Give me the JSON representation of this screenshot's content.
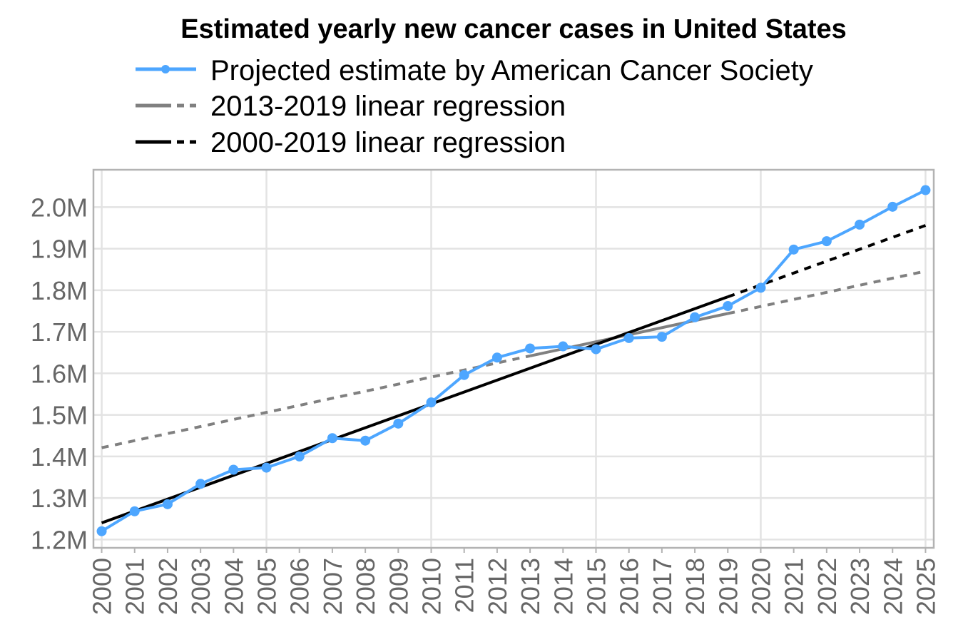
{
  "chart_data": {
    "type": "line",
    "title": "Estimated yearly new cancer cases in United States",
    "xlabel": "",
    "ylabel": "",
    "x": [
      "2000",
      "2001",
      "2002",
      "2003",
      "2004",
      "2005",
      "2006",
      "2007",
      "2008",
      "2009",
      "2010",
      "2011",
      "2012",
      "2013",
      "2014",
      "2015",
      "2016",
      "2017",
      "2018",
      "2019",
      "2020",
      "2021",
      "2022",
      "2023",
      "2024",
      "2025"
    ],
    "xlim": [
      1999.75,
      2025.25
    ],
    "ylim": [
      1.18,
      2.09
    ],
    "y_ticks": [
      {
        "value": 1.2,
        "label": "1.2M"
      },
      {
        "value": 1.3,
        "label": "1.3M"
      },
      {
        "value": 1.4,
        "label": "1.4M"
      },
      {
        "value": 1.5,
        "label": "1.5M"
      },
      {
        "value": 1.6,
        "label": "1.6M"
      },
      {
        "value": 1.7,
        "label": "1.7M"
      },
      {
        "value": 1.8,
        "label": "1.8M"
      },
      {
        "value": 1.9,
        "label": "1.9M"
      },
      {
        "value": 2.0,
        "label": "2.0M"
      }
    ],
    "grid": true,
    "legend_position": "top",
    "series": [
      {
        "name": "Projected estimate by American Cancer Society",
        "color": "#4da6ff",
        "style": "line-markers",
        "x": [
          2000,
          2001,
          2002,
          2003,
          2004,
          2005,
          2006,
          2007,
          2008,
          2009,
          2010,
          2011,
          2012,
          2013,
          2014,
          2015,
          2016,
          2017,
          2018,
          2019,
          2020,
          2021,
          2022,
          2023,
          2024,
          2025
        ],
        "values": [
          1.22,
          1.268,
          1.285,
          1.334,
          1.368,
          1.373,
          1.4,
          1.444,
          1.438,
          1.479,
          1.53,
          1.596,
          1.638,
          1.66,
          1.665,
          1.658,
          1.685,
          1.688,
          1.735,
          1.762,
          1.806,
          1.898,
          1.918,
          1.958,
          2.001,
          2.041
        ]
      },
      {
        "name": "2013-2019 linear regression",
        "color": "#808080",
        "fit_range": [
          2013,
          2019
        ],
        "start": [
          2000,
          1.421
        ],
        "end": [
          2025,
          1.846
        ]
      },
      {
        "name": "2000-2019 linear regression",
        "color": "#000000",
        "fit_range": [
          2000,
          2019
        ],
        "start": [
          2000,
          1.24
        ],
        "end": [
          2025,
          1.956
        ]
      }
    ]
  }
}
